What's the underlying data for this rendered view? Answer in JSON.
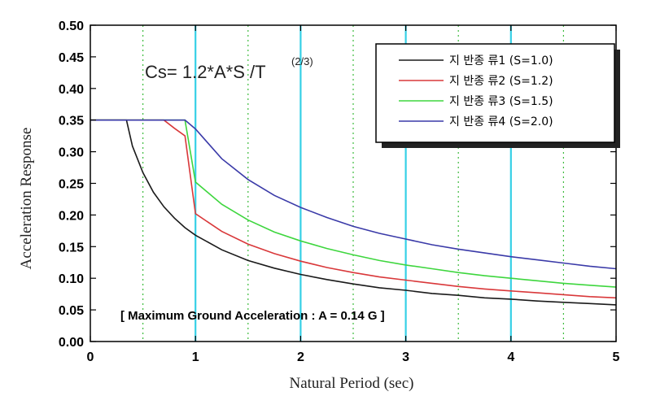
{
  "chart_data": {
    "type": "line",
    "title": "",
    "xlabel": "Natural Period (sec)",
    "ylabel": "Acceleration Response",
    "xlim": [
      0,
      5
    ],
    "ylim": [
      0,
      0.5
    ],
    "x_ticks": [
      "0",
      "1",
      "2",
      "3",
      "4",
      "5"
    ],
    "y_ticks": [
      "0.00",
      "0.05",
      "0.10",
      "0.15",
      "0.20",
      "0.25",
      "0.30",
      "0.35",
      "0.40",
      "0.45",
      "0.50"
    ],
    "major_gridlines_x": [
      1,
      2,
      3,
      4
    ],
    "minor_gridlines_x": [
      0.5,
      1.5,
      2.5,
      3.5,
      4.5
    ],
    "formula": {
      "main": "Cs= 1.2*A*S /T",
      "superscript": "(2/3)"
    },
    "annotation": "[ Maximum Ground Acceleration : A = 0.14 G ]",
    "legend_position": "top-right",
    "x": [
      0.0,
      0.2,
      0.344,
      0.4,
      0.5,
      0.6,
      0.7,
      0.8,
      0.9,
      1.0,
      1.25,
      1.5,
      1.75,
      2.0,
      2.25,
      2.5,
      2.75,
      3.0,
      3.25,
      3.5,
      3.75,
      4.0,
      4.25,
      4.5,
      4.75,
      5.0
    ],
    "series": [
      {
        "name": "지 반종 류1 (S=1.0)",
        "color": "#1a1a1a",
        "values": [
          0.35,
          0.35,
          0.35,
          0.309,
          0.267,
          0.236,
          0.213,
          0.195,
          0.18,
          0.168,
          0.145,
          0.128,
          0.116,
          0.106,
          0.098,
          0.091,
          0.085,
          0.081,
          0.076,
          0.073,
          0.069,
          0.067,
          0.064,
          0.062,
          0.06,
          0.058
        ]
      },
      {
        "name": "지 반종 류2 (S=1.2)",
        "color": "#d9383a",
        "values": [
          0.35,
          0.35,
          0.35,
          0.35,
          0.35,
          0.35,
          0.35,
          0.337,
          0.325,
          0.202,
          0.174,
          0.154,
          0.139,
          0.127,
          0.117,
          0.109,
          0.102,
          0.097,
          0.092,
          0.087,
          0.083,
          0.08,
          0.077,
          0.074,
          0.071,
          0.069
        ]
      },
      {
        "name": "지 반종 류3 (S=1.5)",
        "color": "#3ed63e",
        "values": [
          0.35,
          0.35,
          0.35,
          0.35,
          0.35,
          0.35,
          0.35,
          0.35,
          0.35,
          0.252,
          0.217,
          0.192,
          0.173,
          0.159,
          0.147,
          0.137,
          0.128,
          0.121,
          0.115,
          0.109,
          0.104,
          0.1,
          0.096,
          0.092,
          0.089,
          0.086
        ]
      },
      {
        "name": "지 반종 류4 (S=2.0)",
        "color": "#3a3aa8",
        "values": [
          0.35,
          0.35,
          0.35,
          0.35,
          0.35,
          0.35,
          0.35,
          0.35,
          0.35,
          0.336,
          0.289,
          0.256,
          0.231,
          0.212,
          0.196,
          0.182,
          0.171,
          0.162,
          0.153,
          0.146,
          0.14,
          0.134,
          0.129,
          0.124,
          0.119,
          0.115
        ]
      }
    ]
  }
}
